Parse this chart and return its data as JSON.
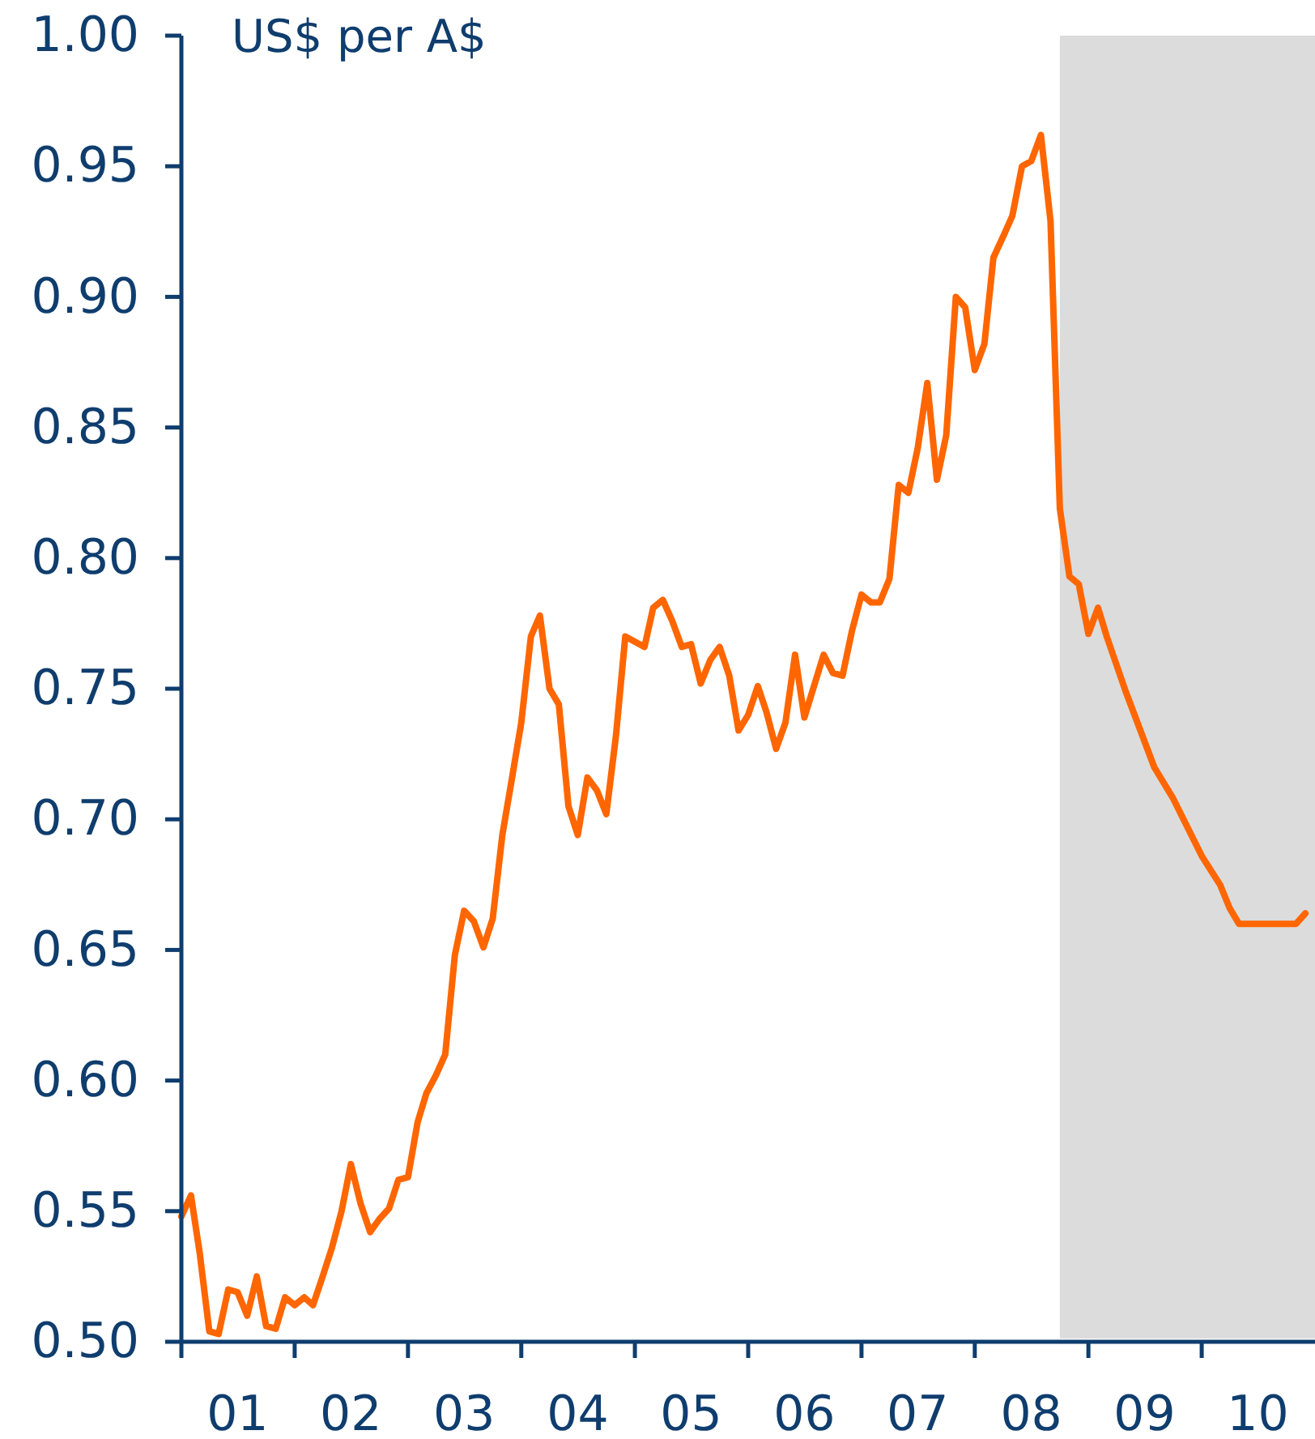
{
  "chart_data": {
    "type": "line",
    "ylabel": "US$ per A$",
    "x": [
      "2001-01",
      "2001-02",
      "2001-03",
      "2001-04",
      "2001-05",
      "2001-06",
      "2001-07",
      "2001-08",
      "2001-09",
      "2001-10",
      "2001-11",
      "2001-12",
      "2002-01",
      "2002-02",
      "2002-03",
      "2002-04",
      "2002-05",
      "2002-06",
      "2002-07",
      "2002-08",
      "2002-09",
      "2002-10",
      "2002-11",
      "2002-12",
      "2003-01",
      "2003-02",
      "2003-03",
      "2003-04",
      "2003-05",
      "2003-06",
      "2003-07",
      "2003-08",
      "2003-09",
      "2003-10",
      "2003-11",
      "2003-12",
      "2004-01",
      "2004-02",
      "2004-03",
      "2004-04",
      "2004-05",
      "2004-06",
      "2004-07",
      "2004-08",
      "2004-09",
      "2004-10",
      "2004-11",
      "2004-12",
      "2005-01",
      "2005-02",
      "2005-03",
      "2005-04",
      "2005-05",
      "2005-06",
      "2005-07",
      "2005-08",
      "2005-09",
      "2005-10",
      "2005-11",
      "2005-12",
      "2006-01",
      "2006-02",
      "2006-03",
      "2006-04",
      "2006-05",
      "2006-06",
      "2006-07",
      "2006-08",
      "2006-09",
      "2006-10",
      "2006-11",
      "2006-12",
      "2007-01",
      "2007-02",
      "2007-03",
      "2007-04",
      "2007-05",
      "2007-06",
      "2007-07",
      "2007-08",
      "2007-09",
      "2007-10",
      "2007-11",
      "2007-12",
      "2008-01",
      "2008-02",
      "2008-03",
      "2008-04",
      "2008-05",
      "2008-06",
      "2008-07",
      "2008-08",
      "2008-09",
      "2008-10",
      "2008-11",
      "2008-12",
      "2009-01",
      "2009-02",
      "2009-03",
      "2009-05",
      "2009-08",
      "2009-10",
      "2010-01",
      "2010-03",
      "2010-04",
      "2010-05",
      "2010-11",
      "2010-12"
    ],
    "values": [
      0.548,
      0.556,
      0.534,
      0.504,
      0.503,
      0.52,
      0.519,
      0.51,
      0.525,
      0.506,
      0.505,
      0.517,
      0.514,
      0.517,
      0.514,
      0.525,
      0.536,
      0.55,
      0.568,
      0.553,
      0.542,
      0.547,
      0.551,
      0.562,
      0.563,
      0.584,
      0.595,
      0.602,
      0.61,
      0.648,
      0.665,
      0.661,
      0.651,
      0.662,
      0.694,
      0.715,
      0.737,
      0.77,
      0.778,
      0.75,
      0.744,
      0.705,
      0.694,
      0.716,
      0.711,
      0.702,
      0.732,
      0.77,
      0.768,
      0.766,
      0.781,
      0.784,
      0.776,
      0.766,
      0.767,
      0.752,
      0.761,
      0.766,
      0.755,
      0.734,
      0.74,
      0.751,
      0.741,
      0.727,
      0.737,
      0.763,
      0.739,
      0.751,
      0.763,
      0.756,
      0.755,
      0.772,
      0.786,
      0.783,
      0.783,
      0.792,
      0.828,
      0.825,
      0.842,
      0.867,
      0.83,
      0.847,
      0.9,
      0.896,
      0.872,
      0.882,
      0.915,
      0.923,
      0.931,
      0.95,
      0.952,
      0.962,
      0.929,
      0.819,
      0.793,
      0.79,
      0.771,
      0.781,
      0.77,
      0.749,
      0.72,
      0.708,
      0.686,
      0.675,
      0.666,
      0.66,
      0.66,
      0.664
    ],
    "color": "#ff6600",
    "line_style": "solid",
    "xlim": [
      "2001-01",
      "2011-01"
    ],
    "xticks": [
      {
        "value": "2001-01",
        "label": null
      },
      {
        "value": "2001-07",
        "label": "01"
      },
      {
        "value": "2002-01",
        "label": null
      },
      {
        "value": "2002-07",
        "label": "02"
      },
      {
        "value": "2003-01",
        "label": null
      },
      {
        "value": "2003-07",
        "label": "03"
      },
      {
        "value": "2004-01",
        "label": null
      },
      {
        "value": "2004-07",
        "label": "04"
      },
      {
        "value": "2005-01",
        "label": null
      },
      {
        "value": "2005-07",
        "label": "05"
      },
      {
        "value": "2006-01",
        "label": null
      },
      {
        "value": "2006-07",
        "label": "06"
      },
      {
        "value": "2007-01",
        "label": null
      },
      {
        "value": "2007-07",
        "label": "07"
      },
      {
        "value": "2008-01",
        "label": null
      },
      {
        "value": "2008-07",
        "label": "08"
      },
      {
        "value": "2009-01",
        "label": null
      },
      {
        "value": "2009-07",
        "label": "09"
      },
      {
        "value": "2010-01",
        "label": null
      },
      {
        "value": "2010-07",
        "label": "10"
      }
    ],
    "ylim": [
      0.5,
      1.0
    ],
    "yticks": [
      {
        "value": 0.5,
        "label": "0.50"
      },
      {
        "value": 0.55,
        "label": "0.55"
      },
      {
        "value": 0.6,
        "label": "0.60"
      },
      {
        "value": 0.65,
        "label": "0.65"
      },
      {
        "value": 0.7,
        "label": "0.70"
      },
      {
        "value": 0.75,
        "label": "0.75"
      },
      {
        "value": 0.8,
        "label": "0.80"
      },
      {
        "value": 0.85,
        "label": "0.85"
      },
      {
        "value": 0.9,
        "label": "0.90"
      },
      {
        "value": 0.95,
        "label": "0.95"
      },
      {
        "value": 1.0,
        "label": "1.00"
      }
    ],
    "bands": [
      {
        "axis": "x",
        "from": "2008-10",
        "to": "2011-01",
        "color": "#dcdcdc"
      }
    ]
  }
}
